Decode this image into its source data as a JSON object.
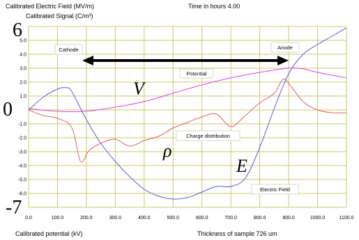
{
  "header": {
    "left_line1": "Calibrated Electric Field (MV/m)",
    "left_line2": "Calibrated Signal (C/m³)",
    "time_label": "Time in hours",
    "time_value": "4.00"
  },
  "footer": {
    "xaxis_left": "Calibrated potential (kV)",
    "xaxis_right": "Thickness of sample 726 um"
  },
  "overlay": {
    "y_top": "6",
    "y_zero": "0",
    "y_bottom": "-7",
    "symbol_V": "V",
    "symbol_rho": "ρ",
    "symbol_E": "E",
    "arrow_left_label": "Cathode",
    "arrow_right_label": "Anode"
  },
  "colors": {
    "background": "#ffffff",
    "grid": "#c8c86e",
    "potential": "#e040e0",
    "charge": "#e06060",
    "field": "#5a5ad8",
    "arrow": "#000000"
  },
  "chart_data": {
    "type": "line",
    "title": "",
    "xlabel": "Thickness of sample 726 um",
    "ylabel": "Calibrated Electric Field (MV/m)",
    "xlim": [
      0,
      1100
    ],
    "ylim": [
      -7,
      6
    ],
    "x_ticks": [
      0,
      100,
      200,
      300,
      400,
      500,
      600,
      700,
      800,
      900,
      1000,
      1100
    ],
    "x_tick_labels": [
      "0.0",
      "100.0",
      "200.0",
      "300.0",
      "400.0",
      "500.0",
      "600.0",
      "700.0",
      "800.0",
      "900.0",
      "1000.0",
      "1100.0"
    ],
    "y_ticks": [
      6,
      5,
      4,
      3,
      2,
      1,
      0,
      -1,
      -2,
      -3,
      -4,
      -5,
      -6,
      -7
    ],
    "y_tick_labels": [
      "6",
      "5.0",
      "4.0",
      "3.0",
      "2.0",
      "1.0",
      "0",
      "-1.0",
      "-2.0",
      "-3.0",
      "-4.0",
      "-5.0",
      "-6.0",
      "-7"
    ],
    "grid": true,
    "annotations": [
      "Potential",
      "Charge distribution",
      "Electric Field"
    ],
    "series": [
      {
        "name": "Potential",
        "color": "#e040e0",
        "x": [
          0,
          100,
          200,
          300,
          400,
          500,
          600,
          700,
          800,
          900,
          950,
          1000,
          1100
        ],
        "y": [
          0.1,
          -0.1,
          -0.1,
          0.2,
          0.6,
          1.2,
          1.8,
          2.3,
          2.7,
          3.0,
          2.95,
          2.7,
          2.3
        ]
      },
      {
        "name": "Charge distribution",
        "color": "#e06060",
        "x": [
          0,
          50,
          100,
          150,
          180,
          210,
          250,
          300,
          350,
          400,
          450,
          500,
          550,
          600,
          650,
          700,
          750,
          800,
          850,
          880,
          900,
          950,
          1000,
          1050,
          1100
        ],
        "y": [
          0.0,
          -0.4,
          -0.6,
          -1.3,
          -3.7,
          -2.9,
          -2.4,
          -2.1,
          -2.6,
          -2.2,
          -1.9,
          -1.3,
          -0.9,
          -0.5,
          -0.3,
          -1.2,
          -0.4,
          0.5,
          1.2,
          2.2,
          1.9,
          0.6,
          0.0,
          -0.2,
          -0.2
        ]
      },
      {
        "name": "Electric Field",
        "color": "#5a5ad8",
        "x": [
          0,
          50,
          100,
          130,
          150,
          200,
          250,
          300,
          350,
          400,
          450,
          500,
          550,
          600,
          650,
          700,
          750,
          800,
          850,
          900,
          950,
          1000,
          1050,
          1100
        ],
        "y": [
          0.0,
          0.9,
          1.5,
          1.6,
          1.3,
          -0.7,
          -2.4,
          -3.7,
          -4.8,
          -5.7,
          -6.2,
          -6.4,
          -6.3,
          -5.9,
          -5.5,
          -5.5,
          -4.9,
          -2.7,
          0.1,
          2.6,
          4.0,
          4.7,
          5.3,
          5.9
        ]
      }
    ]
  }
}
